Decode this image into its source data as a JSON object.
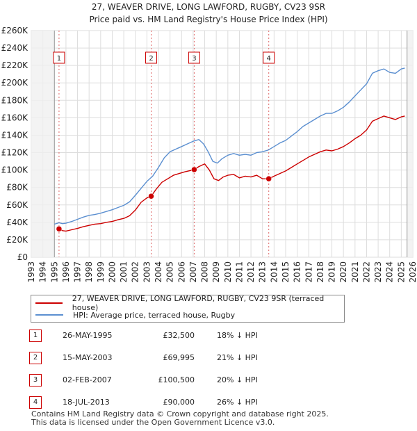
{
  "title_line1": "27, WEAVER DRIVE, LONG LAWFORD, RUGBY, CV23 9SR",
  "title_line2": "Price paid vs. HM Land Registry's House Price Index (HPI)",
  "chart_data": {
    "type": "line",
    "title": "27, WEAVER DRIVE, LONG LAWFORD, RUGBY, CV23 9SR - Price paid vs. HM Land Registry's House Price Index (HPI)",
    "xlabel": "",
    "ylabel": "",
    "xlim": [
      1993,
      2026
    ],
    "ylim": [
      0,
      260000
    ],
    "grid": true,
    "x_ticks": [
      "1993",
      "1994",
      "1995",
      "1996",
      "1997",
      "1998",
      "1999",
      "2000",
      "2001",
      "2002",
      "2003",
      "2004",
      "2005",
      "2006",
      "2007",
      "2008",
      "2009",
      "2010",
      "2011",
      "2012",
      "2013",
      "2014",
      "2015",
      "2016",
      "2017",
      "2018",
      "2019",
      "2020",
      "2021",
      "2022",
      "2023",
      "2024",
      "2025",
      "2026"
    ],
    "y_ticks": [
      0,
      20000,
      40000,
      60000,
      80000,
      100000,
      120000,
      140000,
      160000,
      180000,
      200000,
      220000,
      240000,
      260000
    ],
    "y_tick_labels": [
      "£0",
      "£20K",
      "£40K",
      "£60K",
      "£80K",
      "£100K",
      "£120K",
      "£140K",
      "£160K",
      "£180K",
      "£200K",
      "£220K",
      "£240K",
      "£260K"
    ],
    "series": [
      {
        "name": "27, WEAVER DRIVE, LONG LAWFORD, RUGBY, CV23 9SR (terraced house)",
        "color": "#cc0000",
        "x": [
          1995.4,
          1995.7,
          1996.0,
          1996.5,
          1997.0,
          1997.5,
          1998.0,
          1998.5,
          1999.0,
          1999.5,
          2000.0,
          2000.5,
          2001.0,
          2001.5,
          2002.0,
          2002.5,
          2003.0,
          2003.37,
          2003.8,
          2004.3,
          2004.8,
          2005.3,
          2005.8,
          2006.3,
          2006.8,
          2007.09,
          2007.5,
          2008.0,
          2008.4,
          2008.8,
          2009.2,
          2009.6,
          2010.0,
          2010.5,
          2011.0,
          2011.5,
          2012.0,
          2012.5,
          2013.0,
          2013.54,
          2014.0,
          2014.5,
          2015.0,
          2015.5,
          2016.0,
          2016.5,
          2017.0,
          2017.5,
          2018.0,
          2018.5,
          2019.0,
          2019.5,
          2020.0,
          2020.5,
          2021.0,
          2021.5,
          2022.0,
          2022.5,
          2023.0,
          2023.5,
          2024.0,
          2024.5,
          2025.0,
          2025.3
        ],
        "values": [
          32500,
          30500,
          30000,
          31500,
          33000,
          35000,
          36500,
          38000,
          38500,
          40000,
          41000,
          43000,
          44500,
          47500,
          54000,
          63000,
          68000,
          69995,
          78000,
          86000,
          90000,
          94000,
          96000,
          98000,
          99500,
          100500,
          104000,
          107000,
          100000,
          90000,
          88000,
          92000,
          94000,
          95000,
          91000,
          93000,
          92000,
          94000,
          90000,
          90000,
          93000,
          96000,
          99000,
          103000,
          107000,
          111000,
          115000,
          118000,
          121000,
          123000,
          122000,
          124000,
          127000,
          131000,
          136000,
          140000,
          146000,
          156000,
          159000,
          162000,
          160000,
          158000,
          161000,
          162000
        ]
      },
      {
        "name": "HPI: Average price, terraced house, Rugby",
        "color": "#5b8fd0",
        "x": [
          1995.0,
          1995.4,
          1995.7,
          1996.0,
          1996.5,
          1997.0,
          1997.5,
          1998.0,
          1998.5,
          1999.0,
          1999.5,
          2000.0,
          2000.5,
          2001.0,
          2001.5,
          2002.0,
          2002.5,
          2003.0,
          2003.5,
          2004.0,
          2004.5,
          2005.0,
          2005.5,
          2006.0,
          2006.5,
          2007.0,
          2007.5,
          2007.9,
          2008.3,
          2008.7,
          2009.1,
          2009.5,
          2010.0,
          2010.5,
          2011.0,
          2011.5,
          2012.0,
          2012.5,
          2013.0,
          2013.5,
          2014.0,
          2014.5,
          2015.0,
          2015.5,
          2016.0,
          2016.5,
          2017.0,
          2017.5,
          2018.0,
          2018.5,
          2019.0,
          2019.5,
          2020.0,
          2020.5,
          2021.0,
          2021.5,
          2022.0,
          2022.5,
          2023.0,
          2023.5,
          2024.0,
          2024.5,
          2025.0,
          2025.3
        ],
        "values": [
          38000,
          39500,
          38500,
          39000,
          41000,
          43500,
          46000,
          48000,
          49000,
          50500,
          52500,
          54500,
          57000,
          59500,
          63500,
          71000,
          79000,
          87000,
          93000,
          103000,
          114000,
          121000,
          124000,
          127000,
          130000,
          133000,
          135000,
          130000,
          121000,
          110000,
          108000,
          113000,
          117000,
          119000,
          117000,
          118000,
          117000,
          120000,
          121000,
          123000,
          127000,
          131000,
          134000,
          139000,
          144000,
          150000,
          154000,
          158000,
          162000,
          165000,
          165000,
          168000,
          172000,
          178000,
          185000,
          192000,
          199000,
          211000,
          214000,
          216000,
          212000,
          211000,
          216000,
          217000
        ]
      }
    ],
    "markers": [
      {
        "label": "1",
        "x": 1995.4,
        "y": 32500
      },
      {
        "label": "2",
        "x": 2003.37,
        "y": 69995
      },
      {
        "label": "3",
        "x": 2007.09,
        "y": 100500
      },
      {
        "label": "4",
        "x": 2013.54,
        "y": 90000
      }
    ]
  },
  "legend": {
    "items": [
      {
        "label": "27, WEAVER DRIVE, LONG LAWFORD, RUGBY, CV23 9SR (terraced house)",
        "color": "#cc0000"
      },
      {
        "label": "HPI: Average price, terraced house, Rugby",
        "color": "#5b8fd0"
      }
    ]
  },
  "sales": [
    {
      "num": "1",
      "date": "26-MAY-1995",
      "price": "£32,500",
      "pct": "18% ↓ HPI"
    },
    {
      "num": "2",
      "date": "15-MAY-2003",
      "price": "£69,995",
      "pct": "21% ↓ HPI"
    },
    {
      "num": "3",
      "date": "02-FEB-2007",
      "price": "£100,500",
      "pct": "20% ↓ HPI"
    },
    {
      "num": "4",
      "date": "18-JUL-2013",
      "price": "£90,000",
      "pct": "26% ↓ HPI"
    }
  ],
  "footer": {
    "line1": "Contains HM Land Registry data © Crown copyright and database right 2025.",
    "line2": "This data is licensed under the Open Government Licence v3.0."
  }
}
